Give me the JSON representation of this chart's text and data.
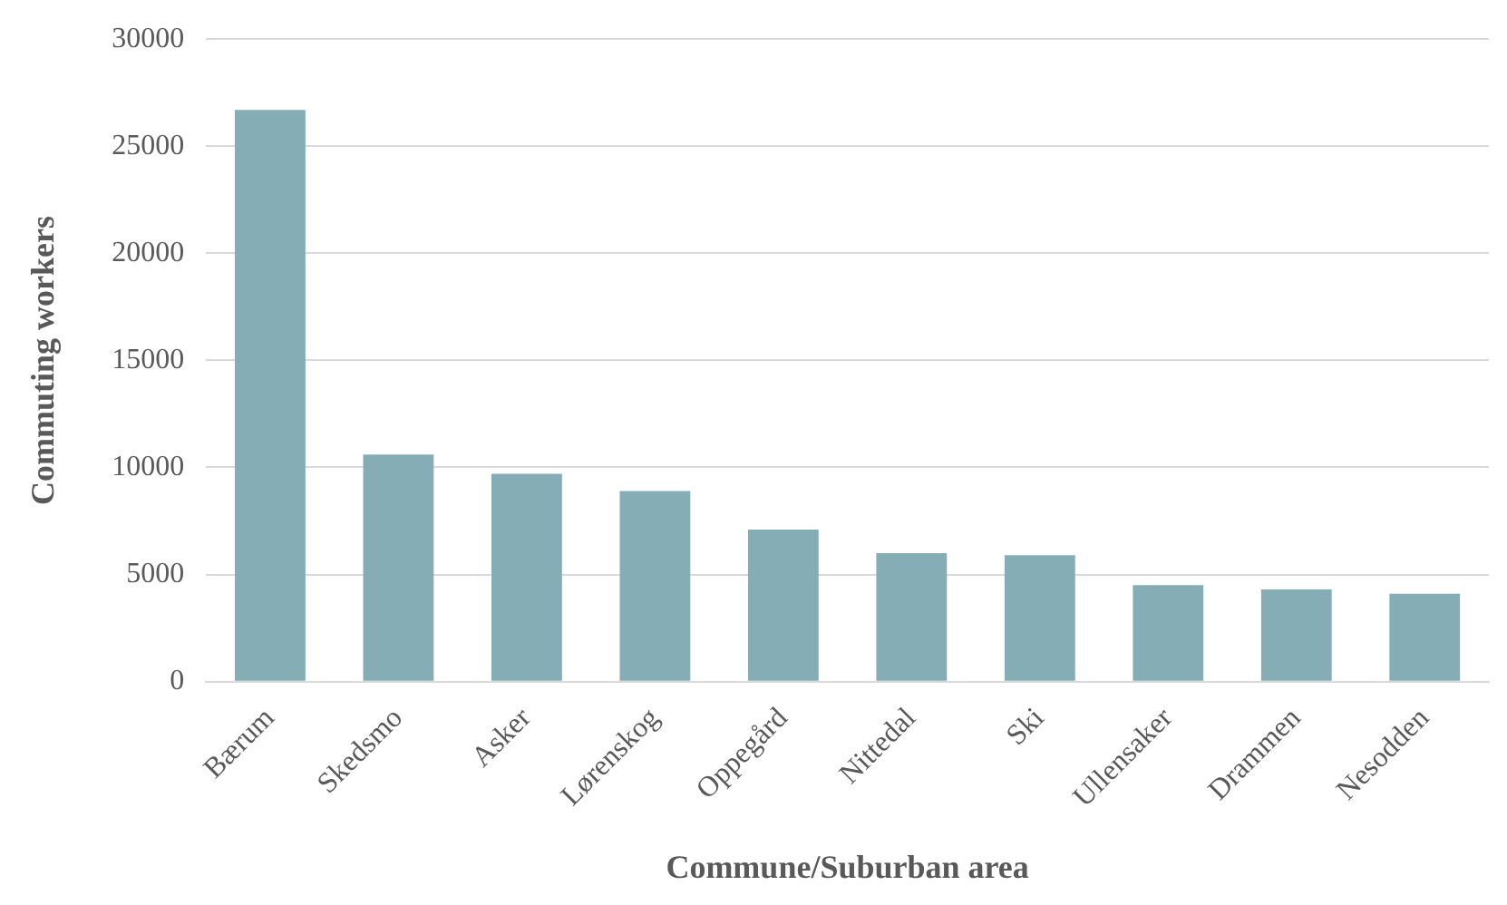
{
  "chart_data": {
    "type": "bar",
    "xlabel": "Commune/Suburban area",
    "ylabel": "Commuting workers",
    "categories": [
      "Bærum",
      "Skedsmo",
      "Asker",
      "Lørenskog",
      "Oppegård",
      "Nittedal",
      "Ski",
      "Ullensaker",
      "Drammen",
      "Nesodden"
    ],
    "values": [
      26700,
      10600,
      9700,
      8900,
      7100,
      6000,
      5900,
      4500,
      4300,
      4100
    ],
    "color": "#84adb5",
    "ylim": [
      0,
      30000
    ],
    "yticks": [
      0,
      5000,
      10000,
      15000,
      20000,
      25000,
      30000
    ],
    "grid": "y",
    "legend": false
  }
}
